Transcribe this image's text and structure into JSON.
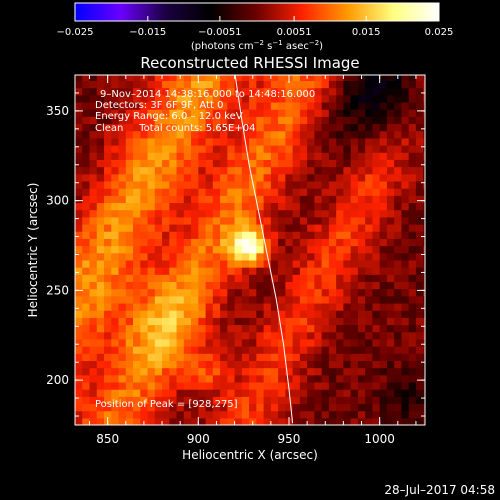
{
  "chart_data": {
    "type": "heatmap",
    "title": "Reconstructed RHESSI Image",
    "xlabel": "Heliocentric X (arcsec)",
    "ylabel": "Heliocentric Y (arcsec)",
    "xlim": [
      832,
      1025
    ],
    "ylim": [
      175,
      370
    ],
    "x_ticks": [
      850,
      900,
      950,
      1000
    ],
    "y_ticks": [
      200,
      250,
      300,
      350
    ],
    "colorbar": {
      "range": [
        -0.025,
        0.025
      ],
      "ticks": [
        -0.025,
        -0.015,
        -0.0051,
        0.0051,
        0.015,
        0.025
      ],
      "tick_labels": [
        "−0.025",
        "−0.015",
        "−0.0051",
        "0.0051",
        "0.015",
        "0.025"
      ],
      "units": [
        "(photons cm",
        "−2",
        " s",
        "−1",
        " asec",
        "−2",
        ")"
      ],
      "colors": [
        "#0000ff",
        "#6a00ff",
        "#1a0040",
        "#000000",
        "#6e0000",
        "#ff2200",
        "#ff9a00",
        "#ffff80",
        "#ffffff"
      ]
    },
    "annotations": [
      "9–Nov–2014 14:38:16.000 to 14:48:16.000",
      "Detectors: 3F 6F 9F, Att 0",
      "Energy Range: 6.0 – 12.0 keV",
      "Clean     Total counts: 5.65E+04"
    ],
    "peak_label": "Position of Peak = [928,275]",
    "peak": {
      "x": 928,
      "y": 275,
      "value": 0.025
    },
    "limb_curve": [
      [
        920,
        372
      ],
      [
        924,
        345
      ],
      [
        928,
        320
      ],
      [
        933,
        295
      ],
      [
        938,
        270
      ],
      [
        943,
        245
      ],
      [
        947,
        220
      ],
      [
        950,
        195
      ],
      [
        952,
        176
      ]
    ],
    "image_field": {
      "components": [
        {
          "type": "band",
          "x0": 848,
          "slope": -0.55,
          "width": 18,
          "amp": 0.012
        },
        {
          "type": "band",
          "x0": 905,
          "slope": -0.55,
          "width": 16,
          "amp": 0.01
        },
        {
          "type": "band",
          "x0": 975,
          "slope": -0.55,
          "width": 14,
          "amp": 0.007
        },
        {
          "type": "blob",
          "x": 928,
          "y": 275,
          "sigma": 7,
          "amp": 0.021
        },
        {
          "type": "blob",
          "x": 880,
          "y": 232,
          "sigma": 18,
          "amp": 0.006
        },
        {
          "type": "blob",
          "x": 905,
          "y": 204,
          "sigma": 8,
          "amp": 0.007
        },
        {
          "type": "blob",
          "x": 1005,
          "y": 360,
          "sigma": 22,
          "amp": -0.009
        },
        {
          "type": "blob",
          "x": 1018,
          "y": 190,
          "sigma": 12,
          "amp": -0.004
        }
      ],
      "grid_step": 4,
      "noise": 0.0025
    }
  },
  "footer": {
    "timestamp": "28–Jul–2017 04:58"
  }
}
